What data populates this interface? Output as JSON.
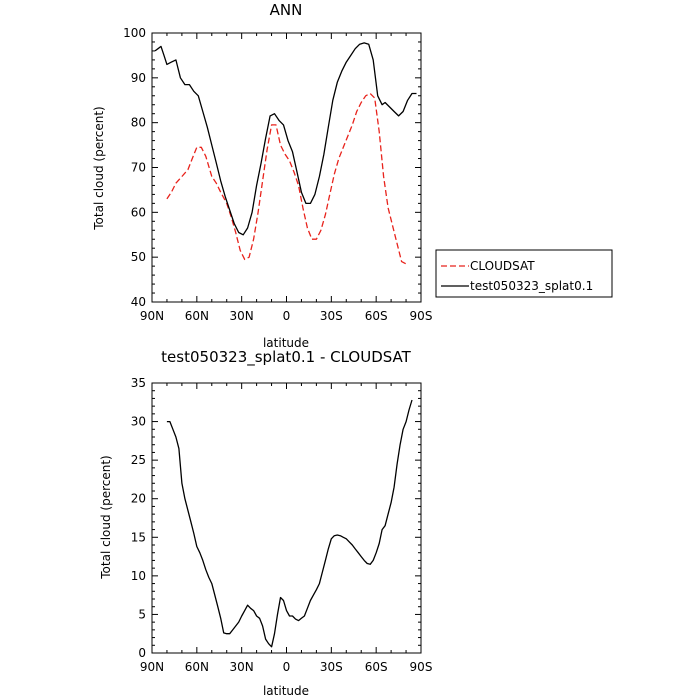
{
  "chart_data": [
    {
      "type": "line",
      "title": "ANN",
      "xlabel": "latitude",
      "ylabel": "Total cloud (percent)",
      "xticks": [
        "90N",
        "60N",
        "30N",
        "0",
        "30S",
        "60S",
        "90S"
      ],
      "xlim": [
        90,
        -90
      ],
      "ylim": [
        40,
        100
      ],
      "yticks": [
        40,
        50,
        60,
        70,
        80,
        90,
        100
      ],
      "legend_position": "right",
      "series": [
        {
          "name": "CLOUDSAT",
          "color": "#e8231c",
          "dash": "dashed",
          "x": [
            80,
            77,
            74,
            70,
            66,
            63,
            60,
            57,
            54,
            50,
            47,
            44,
            40,
            37,
            34,
            31,
            28,
            25,
            22,
            19,
            16,
            13,
            10,
            7,
            4,
            1,
            -2,
            -5,
            -8,
            -11,
            -14,
            -17,
            -20,
            -23,
            -26,
            -29,
            -32,
            -35,
            -38,
            -41,
            -44,
            -47,
            -50,
            -53,
            -56,
            -59,
            -62,
            -65,
            -68,
            -71,
            -74,
            -77,
            -80
          ],
          "y": [
            63,
            64.5,
            66.5,
            68,
            69.5,
            72,
            74.5,
            74.5,
            72.5,
            68,
            66.5,
            64.5,
            62,
            59,
            55.5,
            51.5,
            49.5,
            50,
            54,
            60,
            67,
            74,
            79.5,
            79.5,
            75,
            73,
            71.5,
            69,
            66,
            61,
            56.5,
            54,
            54,
            56,
            59.5,
            64,
            68.5,
            72,
            74.5,
            77,
            79.5,
            82.5,
            84.5,
            86,
            86.5,
            85.5,
            78,
            68,
            61,
            57,
            53,
            49,
            48.5
          ]
        },
        {
          "name": "test050323_splat0.1",
          "color": "#000000",
          "dash": "solid",
          "x": [
            88,
            86,
            84,
            82,
            80,
            77,
            74,
            71,
            68,
            65,
            62,
            59,
            56,
            53,
            50,
            47,
            44,
            41,
            38,
            35,
            32,
            29,
            26,
            23,
            20,
            17,
            14,
            11,
            8,
            5,
            2,
            -1,
            -4,
            -7,
            -10,
            -13,
            -16,
            -19,
            -22,
            -25,
            -28,
            -31,
            -34,
            -37,
            -40,
            -43,
            -46,
            -49,
            -52,
            -55,
            -58,
            -61,
            -64,
            -66,
            -69,
            -72,
            -75,
            -78,
            -81,
            -84,
            -87
          ],
          "y": [
            96,
            96.5,
            97,
            95,
            93,
            93.5,
            94,
            90,
            88.5,
            88.5,
            87,
            86,
            82.5,
            79,
            75,
            71,
            67,
            63.5,
            60.5,
            57.5,
            55.5,
            55,
            56.5,
            60,
            66,
            71,
            76.5,
            81.5,
            82,
            80.5,
            79.5,
            76,
            73.5,
            69,
            64.5,
            62,
            62,
            64,
            68,
            73,
            79,
            85,
            89,
            91.5,
            93.5,
            95,
            96.5,
            97.5,
            97.8,
            97.5,
            94,
            86,
            84,
            84.5,
            83.5,
            82.5,
            81.5,
            82.5,
            85,
            86.5,
            86.5
          ]
        }
      ]
    },
    {
      "type": "line",
      "title": "test050323_splat0.1 - CLOUDSAT",
      "xlabel": "latitude",
      "ylabel": "Total cloud (percent)",
      "xticks": [
        "90N",
        "60N",
        "30N",
        "0",
        "30S",
        "60S",
        "90S"
      ],
      "xlim": [
        90,
        -90
      ],
      "ylim": [
        0,
        35
      ],
      "yticks": [
        0,
        5,
        10,
        15,
        20,
        25,
        30,
        35
      ],
      "series": [
        {
          "color": "#000000",
          "dash": "solid",
          "x": [
            80,
            78,
            76,
            74,
            72,
            70,
            68,
            66,
            64,
            62,
            60,
            58,
            56,
            54,
            52,
            50,
            48,
            46,
            44,
            42,
            40,
            38,
            36,
            34,
            32,
            30,
            28,
            26,
            24,
            22,
            20,
            18,
            16,
            14,
            12,
            10,
            8,
            6,
            4,
            2,
            0,
            -2,
            -4,
            -6,
            -8,
            -10,
            -12,
            -14,
            -16,
            -18,
            -20,
            -22,
            -24,
            -26,
            -28,
            -30,
            -32,
            -34,
            -36,
            -38,
            -40,
            -42,
            -44,
            -46,
            -48,
            -50,
            -52,
            -54,
            -56,
            -58,
            -60,
            -62,
            -64,
            -66,
            -68,
            -70,
            -72,
            -74,
            -76,
            -78,
            -80,
            -82,
            -84
          ],
          "y": [
            30,
            30,
            29,
            28,
            26.5,
            22,
            20,
            18.5,
            17,
            15.5,
            13.8,
            13,
            12,
            10.8,
            9.8,
            9,
            7.5,
            6,
            4.5,
            2.6,
            2.5,
            2.5,
            3,
            3.5,
            4,
            4.8,
            5.5,
            6.2,
            5.8,
            5.5,
            4.8,
            4.5,
            3.5,
            1.8,
            1.2,
            0.8,
            2.5,
            5,
            7.2,
            6.8,
            5.5,
            4.8,
            4.8,
            4.4,
            4.2,
            4.5,
            4.8,
            5.8,
            6.8,
            7.5,
            8.2,
            9,
            10.5,
            12,
            13.5,
            14.8,
            15.2,
            15.3,
            15.2,
            15,
            14.8,
            14.4,
            14,
            13.5,
            13,
            12.5,
            12,
            11.6,
            11.5,
            12,
            13,
            14.2,
            16,
            16.5,
            18,
            19.5,
            21.5,
            24.5,
            27,
            29,
            30,
            31.5,
            32.8
          ]
        }
      ]
    }
  ]
}
